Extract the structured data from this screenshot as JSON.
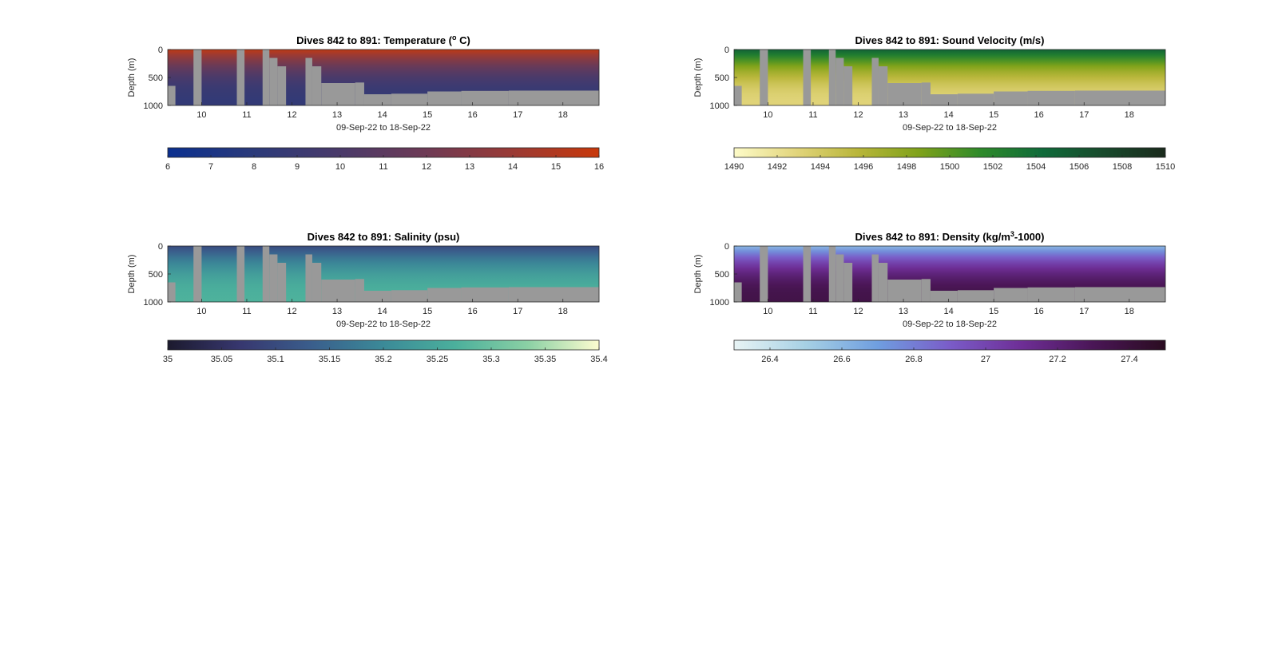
{
  "figure": {
    "background": "#ffffff",
    "nodata_color": "#999999"
  },
  "chart_data": [
    {
      "type": "heatmap",
      "title_prefix": "Dives 842 to 891: Temperature (",
      "title_sup": "o",
      "title_suffix": " C)",
      "xlabel": "09-Sep-22 to 18-Sep-22",
      "ylabel": "Depth (m)",
      "xlim": [
        9.25,
        18.8
      ],
      "ylim": [
        0,
        1000
      ],
      "xticks": [
        "10",
        "11",
        "12",
        "13",
        "14",
        "15",
        "16",
        "17",
        "18"
      ],
      "xtick_values": [
        10,
        11,
        12,
        13,
        14,
        15,
        16,
        17,
        18
      ],
      "yticks": [
        "0",
        "500",
        "1000"
      ],
      "ytick_values": [
        0,
        500,
        1000
      ],
      "surface_value": 15.5,
      "deep_value": 8.5,
      "colorbar": {
        "ticks": [
          "6",
          "7",
          "8",
          "9",
          "10",
          "11",
          "12",
          "13",
          "14",
          "15",
          "16"
        ],
        "tick_values": [
          6,
          7,
          8,
          9,
          10,
          11,
          12,
          13,
          14,
          15,
          16
        ],
        "range": [
          6,
          16
        ],
        "colors": [
          "#0a2f8f",
          "#2b3a7a",
          "#4a3a6a",
          "#6e3a55",
          "#9a3a35",
          "#c8380a"
        ]
      }
    },
    {
      "type": "heatmap",
      "title_prefix": "Dives 842 to 891: Sound Velocity (m/s)",
      "title_sup": "",
      "title_suffix": "",
      "xlabel": "09-Sep-22 to 18-Sep-22",
      "ylabel": "Depth (m)",
      "xlim": [
        9.25,
        18.8
      ],
      "ylim": [
        0,
        1000
      ],
      "xticks": [
        "10",
        "11",
        "12",
        "13",
        "14",
        "15",
        "16",
        "17",
        "18"
      ],
      "xtick_values": [
        10,
        11,
        12,
        13,
        14,
        15,
        16,
        17,
        18
      ],
      "yticks": [
        "0",
        "500",
        "1000"
      ],
      "ytick_values": [
        0,
        500,
        1000
      ],
      "surface_value": 1505,
      "deep_value": 1493,
      "colorbar": {
        "ticks": [
          "1490",
          "1492",
          "1494",
          "1496",
          "1498",
          "1500",
          "1502",
          "1504",
          "1506",
          "1508",
          "1510"
        ],
        "tick_values": [
          1490,
          1492,
          1494,
          1496,
          1498,
          1500,
          1502,
          1504,
          1506,
          1508,
          1510
        ],
        "range": [
          1490,
          1510
        ],
        "colors": [
          "#fdfbc8",
          "#e2d57c",
          "#b9b63a",
          "#7fa21a",
          "#2e8a2a",
          "#0f6b3a",
          "#184a2c",
          "#1a2a1c"
        ]
      }
    },
    {
      "type": "heatmap",
      "title_prefix": "Dives 842 to 891: Salinity (psu)",
      "title_sup": "",
      "title_suffix": "",
      "xlabel": "09-Sep-22 to 18-Sep-22",
      "ylabel": "Depth (m)",
      "xlim": [
        9.25,
        18.8
      ],
      "ylim": [
        0,
        1000
      ],
      "xticks": [
        "10",
        "11",
        "12",
        "13",
        "14",
        "15",
        "16",
        "17",
        "18"
      ],
      "xtick_values": [
        10,
        11,
        12,
        13,
        14,
        15,
        16,
        17,
        18
      ],
      "yticks": [
        "0",
        "500",
        "1000"
      ],
      "ytick_values": [
        0,
        500,
        1000
      ],
      "surface_value": 35.1,
      "deep_value": 35.27,
      "colorbar": {
        "ticks": [
          "35",
          "35.05",
          "35.1",
          "35.15",
          "35.2",
          "35.25",
          "35.3",
          "35.35",
          "35.4"
        ],
        "tick_values": [
          35,
          35.05,
          35.1,
          35.15,
          35.2,
          35.25,
          35.3,
          35.35,
          35.4
        ],
        "range": [
          35,
          35.4
        ],
        "colors": [
          "#1c1a2e",
          "#37376f",
          "#3a5e8c",
          "#3b8a98",
          "#4bb09c",
          "#8ad0a4",
          "#fdfdd0"
        ]
      }
    },
    {
      "type": "heatmap",
      "title_prefix": "Dives 842 to 891: Density (kg/m",
      "title_sup": "3",
      "title_suffix": "-1000)",
      "xlabel": "09-Sep-22 to 18-Sep-22",
      "ylabel": "Depth (m)",
      "xlim": [
        9.25,
        18.8
      ],
      "ylim": [
        0,
        1000
      ],
      "xticks": [
        "10",
        "11",
        "12",
        "13",
        "14",
        "15",
        "16",
        "17",
        "18"
      ],
      "xtick_values": [
        10,
        11,
        12,
        13,
        14,
        15,
        16,
        17,
        18
      ],
      "yticks": [
        "0",
        "500",
        "1000"
      ],
      "ytick_values": [
        0,
        500,
        1000
      ],
      "surface_value": 26.6,
      "deep_value": 27.35,
      "colorbar": {
        "ticks": [
          "26.4",
          "26.6",
          "26.8",
          "27",
          "27.2",
          "27.4"
        ],
        "tick_values": [
          26.4,
          26.6,
          26.8,
          27,
          27.2,
          27.4
        ],
        "range": [
          26.3,
          27.5
        ],
        "colors": [
          "#e8f4f5",
          "#a6d0e4",
          "#6f9ee0",
          "#7a5cc8",
          "#6e2e96",
          "#4a1656",
          "#2a0c20"
        ]
      }
    }
  ],
  "data_gaps": [
    {
      "x0": 9.25,
      "x1": 9.42,
      "depth": 650
    },
    {
      "x0": 9.82,
      "x1": 10.0,
      "depth": 0
    },
    {
      "x0": 10.78,
      "x1": 10.95,
      "depth": 0
    },
    {
      "x0": 11.35,
      "x1": 11.5,
      "depth": 0
    },
    {
      "x0": 11.5,
      "x1": 11.68,
      "depth": 150
    },
    {
      "x0": 11.68,
      "x1": 11.87,
      "depth": 300
    },
    {
      "x0": 12.3,
      "x1": 12.45,
      "depth": 150
    },
    {
      "x0": 12.45,
      "x1": 12.65,
      "depth": 300
    },
    {
      "x0": 12.65,
      "x1": 13.4,
      "depth": 600
    },
    {
      "x0": 13.4,
      "x1": 13.6,
      "depth": 590
    },
    {
      "x0": 13.6,
      "x1": 14.2,
      "depth": 800
    },
    {
      "x0": 14.2,
      "x1": 15.0,
      "depth": 790
    },
    {
      "x0": 15.0,
      "x1": 15.75,
      "depth": 750
    },
    {
      "x0": 15.75,
      "x1": 16.8,
      "depth": 740
    },
    {
      "x0": 16.8,
      "x1": 18.8,
      "depth": 735
    }
  ]
}
